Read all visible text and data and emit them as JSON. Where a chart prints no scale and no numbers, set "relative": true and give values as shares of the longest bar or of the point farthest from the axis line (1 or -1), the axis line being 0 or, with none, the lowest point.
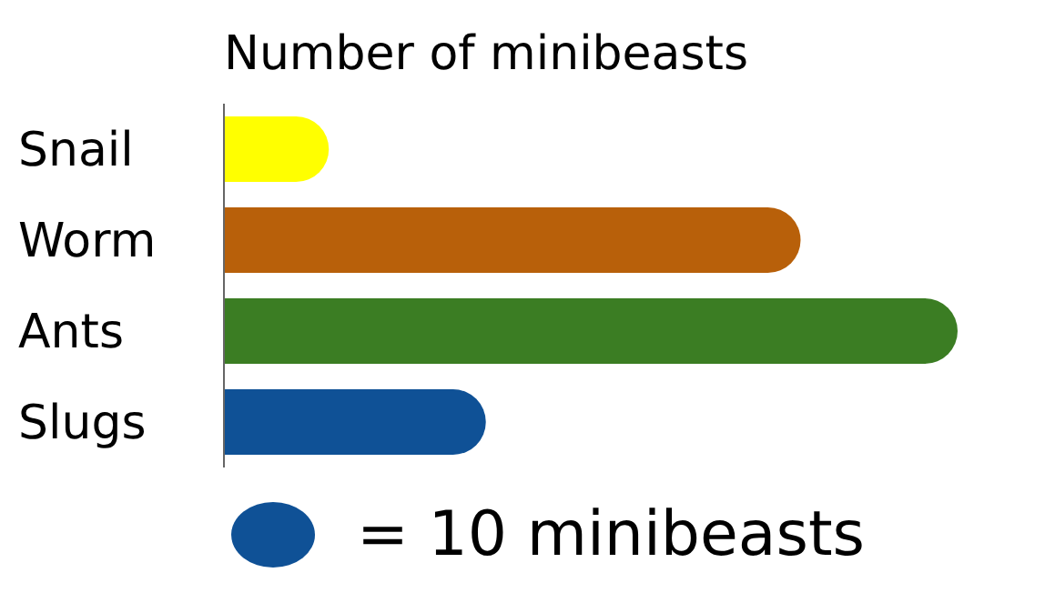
{
  "chart_data": {
    "type": "bar",
    "orientation": "horizontal",
    "relative": true,
    "title": "Number of minibeasts",
    "categories": [
      "Snail",
      "Worm",
      "Ants",
      "Slugs"
    ],
    "values": [
      0.143,
      0.786,
      1,
      0.357
    ],
    "colors": [
      "#ffff00",
      "#b8600a",
      "#3b7d23",
      "#0f5196"
    ],
    "annotations": [
      "= 10 minibeasts"
    ]
  }
}
